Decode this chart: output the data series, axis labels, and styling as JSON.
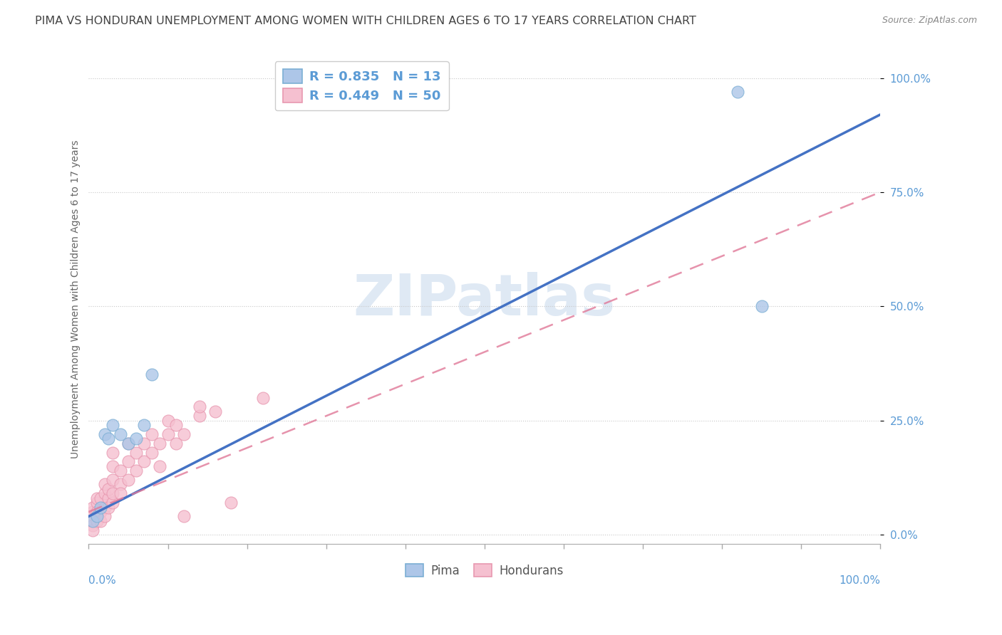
{
  "title": "PIMA VS HONDURAN UNEMPLOYMENT AMONG WOMEN WITH CHILDREN AGES 6 TO 17 YEARS CORRELATION CHART",
  "source": "Source: ZipAtlas.com",
  "ylabel": "Unemployment Among Women with Children Ages 6 to 17 years",
  "xlim": [
    0,
    1.0
  ],
  "ylim": [
    -0.02,
    1.05
  ],
  "ytick_labels": [
    "0.0%",
    "25.0%",
    "50.0%",
    "75.0%",
    "100.0%"
  ],
  "ytick_positions": [
    0.0,
    0.25,
    0.5,
    0.75,
    1.0
  ],
  "pima_R": 0.835,
  "pima_N": 13,
  "honduran_R": 0.449,
  "honduran_N": 50,
  "pima_color": "#adc6e8",
  "pima_edge_color": "#7bafd4",
  "pima_line_color": "#4472c4",
  "honduran_color": "#f5c0d0",
  "honduran_edge_color": "#e898b0",
  "honduran_line_color": "#e07898",
  "watermark_text": "ZIPatlas",
  "title_color": "#444444",
  "axis_tick_color": "#5b9bd5",
  "legend_text_color": "#5b9bd5",
  "pima_line_intercept": 0.04,
  "pima_line_slope": 0.88,
  "honduran_line_intercept": 0.05,
  "honduran_line_slope": 0.7,
  "pima_points": [
    [
      0.005,
      0.03
    ],
    [
      0.01,
      0.04
    ],
    [
      0.015,
      0.06
    ],
    [
      0.02,
      0.22
    ],
    [
      0.025,
      0.21
    ],
    [
      0.03,
      0.24
    ],
    [
      0.04,
      0.22
    ],
    [
      0.05,
      0.2
    ],
    [
      0.06,
      0.21
    ],
    [
      0.07,
      0.24
    ],
    [
      0.08,
      0.35
    ],
    [
      0.82,
      0.97
    ],
    [
      0.85,
      0.5
    ]
  ],
  "honduran_points": [
    [
      0.005,
      0.03
    ],
    [
      0.005,
      0.05
    ],
    [
      0.005,
      0.02
    ],
    [
      0.005,
      0.06
    ],
    [
      0.005,
      0.01
    ],
    [
      0.01,
      0.04
    ],
    [
      0.01,
      0.07
    ],
    [
      0.01,
      0.03
    ],
    [
      0.01,
      0.08
    ],
    [
      0.01,
      0.05
    ],
    [
      0.015,
      0.05
    ],
    [
      0.015,
      0.08
    ],
    [
      0.015,
      0.03
    ],
    [
      0.02,
      0.06
    ],
    [
      0.02,
      0.09
    ],
    [
      0.02,
      0.04
    ],
    [
      0.02,
      0.11
    ],
    [
      0.025,
      0.08
    ],
    [
      0.025,
      0.1
    ],
    [
      0.025,
      0.06
    ],
    [
      0.03,
      0.07
    ],
    [
      0.03,
      0.12
    ],
    [
      0.03,
      0.09
    ],
    [
      0.03,
      0.15
    ],
    [
      0.03,
      0.18
    ],
    [
      0.04,
      0.11
    ],
    [
      0.04,
      0.14
    ],
    [
      0.04,
      0.09
    ],
    [
      0.05,
      0.12
    ],
    [
      0.05,
      0.16
    ],
    [
      0.05,
      0.2
    ],
    [
      0.06,
      0.14
    ],
    [
      0.06,
      0.18
    ],
    [
      0.07,
      0.16
    ],
    [
      0.07,
      0.2
    ],
    [
      0.08,
      0.18
    ],
    [
      0.08,
      0.22
    ],
    [
      0.09,
      0.2
    ],
    [
      0.09,
      0.15
    ],
    [
      0.1,
      0.22
    ],
    [
      0.1,
      0.25
    ],
    [
      0.11,
      0.24
    ],
    [
      0.11,
      0.2
    ],
    [
      0.12,
      0.22
    ],
    [
      0.12,
      0.04
    ],
    [
      0.14,
      0.26
    ],
    [
      0.14,
      0.28
    ],
    [
      0.16,
      0.27
    ],
    [
      0.18,
      0.07
    ],
    [
      0.22,
      0.3
    ]
  ]
}
